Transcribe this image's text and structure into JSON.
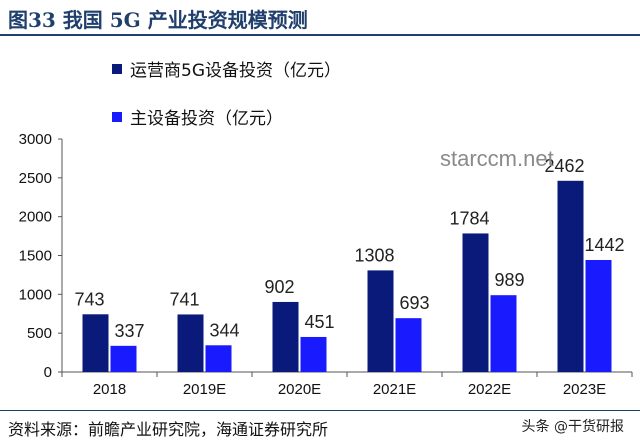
{
  "title": "图33 我国 5G 产业投资规模预测",
  "legend": [
    {
      "label": "运营商5G设备投资（亿元）",
      "color": "#0a1a7a"
    },
    {
      "label": "主设备投资（亿元）",
      "color": "#1a1aff"
    }
  ],
  "watermark": "starccm.net",
  "source": "资料来源：前瞻产业研究院，海通证券研究所",
  "badge": "头条 @干货研报",
  "chart_data": {
    "type": "bar",
    "categories": [
      "2018",
      "2019E",
      "2020E",
      "2021E",
      "2022E",
      "2023E"
    ],
    "series": [
      {
        "name": "运营商5G设备投资（亿元）",
        "values": [
          743,
          741,
          902,
          1308,
          1784,
          2462
        ],
        "color": "#0a1a7a"
      },
      {
        "name": "主设备投资（亿元）",
        "values": [
          337,
          344,
          451,
          693,
          989,
          1442
        ],
        "color": "#1a1aff"
      }
    ],
    "ylim": [
      0,
      3000
    ],
    "yticks": [
      0,
      500,
      1000,
      1500,
      2000,
      2500,
      3000
    ],
    "title": "",
    "xlabel": "",
    "ylabel": "",
    "grid": false,
    "legend_position": "top-left"
  }
}
